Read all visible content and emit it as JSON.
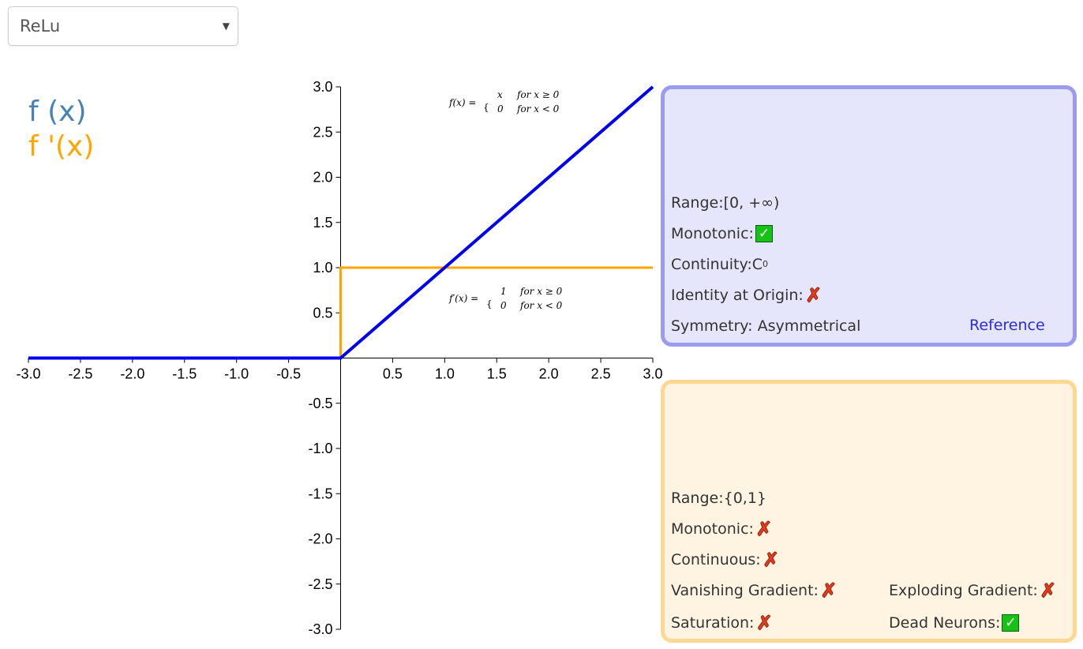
{
  "selector": {
    "value": "ReLu"
  },
  "legend": {
    "f": "f (x)",
    "fprime": "f '(x)"
  },
  "colors": {
    "f": "#0000ee",
    "fprime": "#ffa500",
    "legend_f": "#4682b4"
  },
  "formulas": {
    "f": {
      "lhs": "f(x) =",
      "case1_val": "x",
      "case1_cond": "for x ≥ 0",
      "case2_val": "0",
      "case2_cond": "for x < 0"
    },
    "fprime": {
      "lhs": "f′(x) =",
      "case1_val": "1",
      "case1_cond": "for x ≥ 0",
      "case2_val": "0",
      "case2_cond": "for x < 0"
    }
  },
  "function_panel": {
    "range_label": "Range:",
    "range_value": "[0, +∞)",
    "monotonic_label": "Monotonic:",
    "monotonic": true,
    "continuity_label": "Continuity:",
    "continuity_value": "C",
    "continuity_sup": "0",
    "identity_label": "Identity at Origin:",
    "identity": false,
    "symmetry_label": "Symmetry:",
    "symmetry_value": "Asymmetrical",
    "reference_link": "Reference"
  },
  "derivative_panel": {
    "range_label": "Range:",
    "range_value": "{0,1}",
    "monotonic_label": "Monotonic:",
    "monotonic": false,
    "continuous_label": "Continuous:",
    "continuous": false,
    "vanishing_label": "Vanishing Gradient:",
    "vanishing": false,
    "exploding_label": "Exploding Gradient:",
    "exploding": false,
    "saturation_label": "Saturation:",
    "saturation": false,
    "dead_label": "Dead Neurons:",
    "dead": true
  },
  "chart_data": {
    "type": "line",
    "xlim": [
      -3.0,
      3.0
    ],
    "ylim": [
      -3.0,
      3.0
    ],
    "x_ticks": [
      "-3.0",
      "-2.5",
      "-2.0",
      "-1.5",
      "-1.0",
      "-0.5",
      "0.5",
      "1.0",
      "1.5",
      "2.0",
      "2.5",
      "3.0"
    ],
    "y_ticks": [
      "3.0",
      "2.5",
      "2.0",
      "1.5",
      "1.0",
      "0.5",
      "-0.5",
      "-1.0",
      "-1.5",
      "-2.0",
      "-2.5",
      "-3.0"
    ],
    "series": [
      {
        "name": "f (x)",
        "color": "#0000ee",
        "x": [
          -3.0,
          0.0,
          3.0
        ],
        "y": [
          0.0,
          0.0,
          3.0
        ]
      },
      {
        "name": "f '(x)",
        "color": "#ffa500",
        "x": [
          -3.0,
          0.0,
          0.0,
          3.0
        ],
        "y": [
          0.0,
          0.0,
          1.0,
          1.0
        ]
      }
    ]
  }
}
